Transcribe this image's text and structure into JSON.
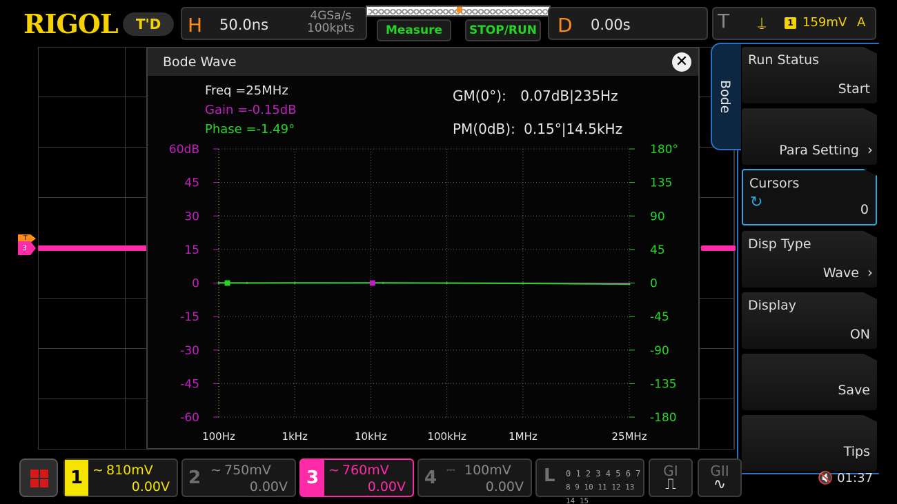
{
  "header": {
    "logo": "RIGOL",
    "mode_badge": "T'D",
    "horizontal": {
      "letter": "H",
      "timebase": "50.0ns",
      "sample_rate": "4GSa/s",
      "memory_depth": "100kpts"
    },
    "measure_label": "Measure",
    "stop_run_label": "STOP/RUN",
    "delay": {
      "letter": "D",
      "value": "0.00s"
    },
    "trigger": {
      "letter": "T",
      "edge_icon": "rising-edge-icon",
      "source": "1",
      "level": "159mV",
      "mode": "A"
    }
  },
  "bode": {
    "title": "Bode Wave",
    "freq": "Freq =25MHz",
    "gain": "Gain =-0.15dB",
    "phase": "Phase =-1.49°",
    "gm_label": "GM(0°):",
    "gm_value": "0.07dB|235Hz",
    "pm_label": "PM(0dB):",
    "pm_value": "0.15°|14.5kHz",
    "colors": {
      "gain": "#c020c0",
      "phase": "#28d428"
    }
  },
  "chart_data": {
    "type": "line",
    "x_ticks": [
      "100Hz",
      "1kHz",
      "10kHz",
      "100kHz",
      "1MHz",
      "25MHz"
    ],
    "y_left_ticks": [
      "60dB",
      "45",
      "30",
      "15",
      "0",
      "-15",
      "-30",
      "-45",
      "-60"
    ],
    "y_right_ticks": [
      "180°",
      "135",
      "90",
      "45",
      "0",
      "-45",
      "-90",
      "-135",
      "-180"
    ],
    "xlim_hz": [
      100,
      25000000
    ],
    "ylim_left_db": [
      -60,
      60
    ],
    "ylim_right_deg": [
      -180,
      180
    ],
    "series": [
      {
        "color": "#c020c0",
        "axis": "left",
        "x": [
          100,
          235,
          1000,
          10000,
          14500,
          100000,
          1000000,
          25000000
        ],
        "values": [
          0.05,
          0.07,
          0.05,
          0.02,
          0.0,
          -0.05,
          -0.1,
          -0.15
        ]
      },
      {
        "color": "#28d428",
        "axis": "right",
        "x": [
          100,
          235,
          1000,
          10000,
          14500,
          100000,
          1000000,
          25000000
        ],
        "values": [
          0.1,
          0.0,
          0.1,
          0.2,
          0.15,
          0.0,
          -0.5,
          -1.49
        ]
      }
    ],
    "markers": [
      {
        "series": 1,
        "x": 130
      },
      {
        "series": 0,
        "x": 10500
      }
    ],
    "grid": true
  },
  "menu": {
    "tab_label": "Bode",
    "items": [
      {
        "label": "Run Status",
        "value": "Start"
      },
      {
        "label": "",
        "value": "Para Setting"
      },
      {
        "label": "Cursors",
        "value": "0"
      },
      {
        "label": "Disp Type",
        "value": "Wave"
      },
      {
        "label": "Display",
        "value": "ON"
      },
      {
        "label": "",
        "value": "Save"
      },
      {
        "label": "",
        "value": "Tips"
      }
    ]
  },
  "channels": [
    {
      "num": "1",
      "coupling_icon": "ac-wave-icon",
      "scale": "810mV",
      "offset": "0.00V",
      "color": "#f5e400"
    },
    {
      "num": "2",
      "coupling_icon": "ac-wave-icon",
      "scale": "750mV",
      "offset": "0.00V",
      "color": "#6e6e6e"
    },
    {
      "num": "3",
      "coupling_icon": "ac-wave-icon",
      "scale": "760mV",
      "offset": "0.00V",
      "color": "#ff2aa8"
    },
    {
      "num": "4",
      "coupling_icon": "dc-icon",
      "scale": "100mV",
      "offset": "0.00V",
      "color": "#6e6e6e"
    }
  ],
  "logic": {
    "letter": "L",
    "row1": "0 1 2 3  4 5 6 7",
    "row2": "8 9 10 11 12 13 14 15"
  },
  "generators": [
    {
      "label": "GI"
    },
    {
      "label": "GII"
    }
  ],
  "status": {
    "speaker_icon": "mute-icon",
    "time": "01:37"
  }
}
